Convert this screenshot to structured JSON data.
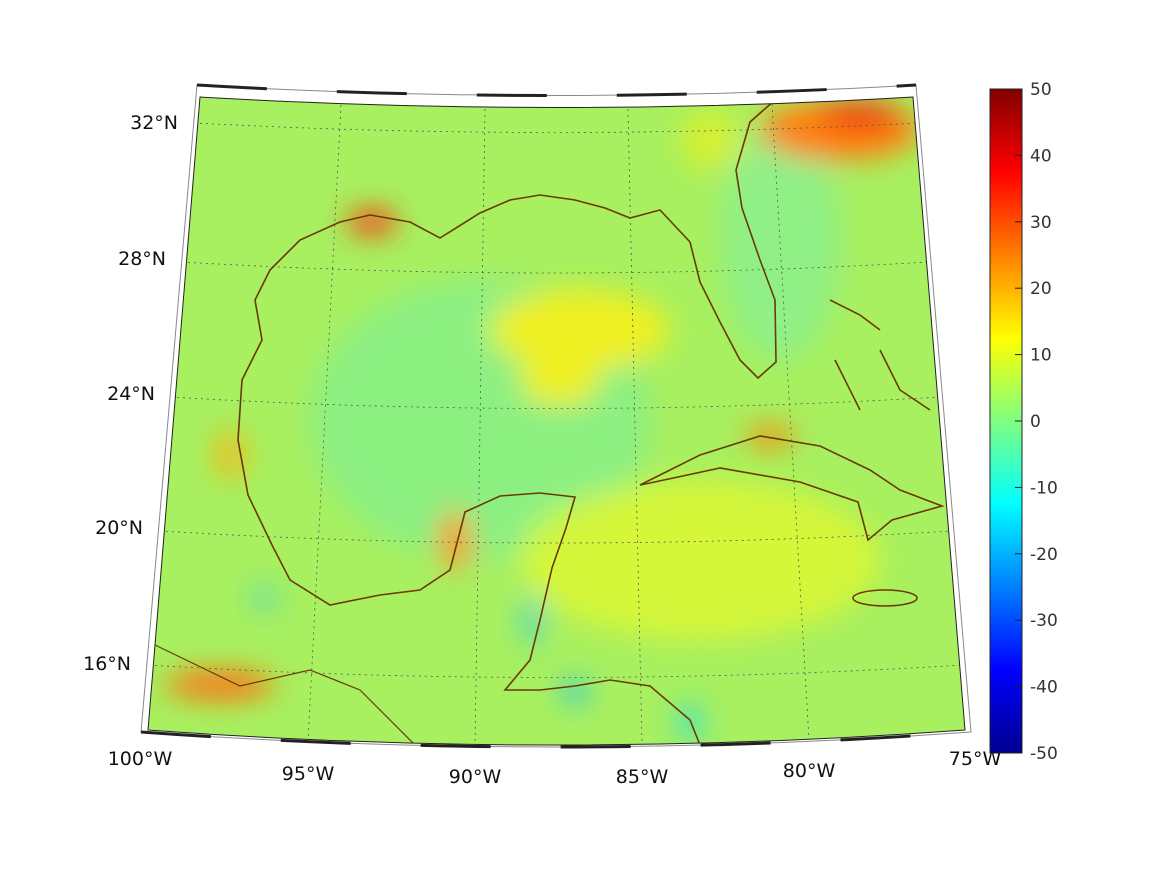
{
  "chart_data": {
    "type": "heatmap",
    "title": "",
    "projection": "conic map",
    "lat_labels": [
      "32°N",
      "28°N",
      "24°N",
      "20°N",
      "16°N"
    ],
    "lon_labels": [
      "100°W",
      "95°W",
      "90°W",
      "85°W",
      "80°W",
      "75°W"
    ],
    "lon_range": [
      -100,
      -75
    ],
    "lat_range": [
      14,
      33
    ],
    "grid": true,
    "colorbar": {
      "colormap": "jet",
      "clim": [
        -50,
        50
      ],
      "ticks": [
        "50",
        "40",
        "30",
        "20",
        "10",
        "0",
        "-10",
        "-20",
        "-30",
        "-40",
        "-50"
      ],
      "placement": "right"
    },
    "colors": {
      "background_field": "#a8f060",
      "coastline": "#6b3a0a"
    },
    "features": [
      {
        "region": "Atlantic east of Georgia/South Carolina",
        "value": 30
      },
      {
        "region": "Louisiana coast",
        "value": 35
      },
      {
        "region": "Yucatan west coast",
        "value": 22
      },
      {
        "region": "Southern Mexico Pacific coast",
        "value": 22
      },
      {
        "region": "North coast of Cuba",
        "value": 25
      },
      {
        "region": "Central Gulf",
        "value": 12
      },
      {
        "region": "Gulf of Honduras",
        "value": -12
      }
    ]
  }
}
